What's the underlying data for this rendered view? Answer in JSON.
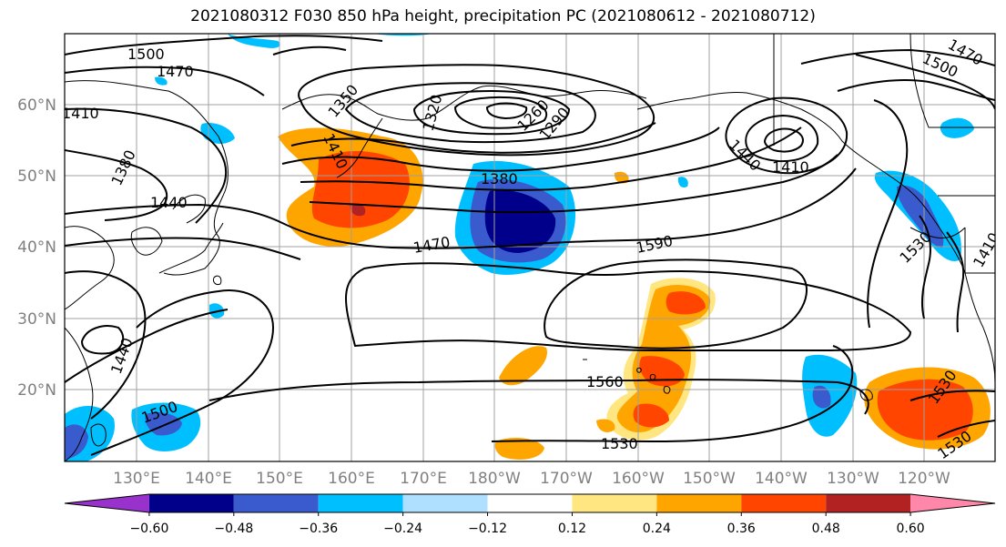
{
  "title": "2021080312 F030 850 hPa height, precipitation PC (2021080612 - 2021080712)",
  "map": {
    "lat_ticks": [
      "60°N",
      "50°N",
      "40°N",
      "30°N",
      "20°N"
    ],
    "lon_ticks": [
      "130°E",
      "140°E",
      "150°E",
      "160°E",
      "170°E",
      "180°W",
      "170°W",
      "160°W",
      "150°W",
      "140°W",
      "130°W",
      "120°W"
    ],
    "contour_labels": [
      "1500",
      "1470",
      "1410",
      "1380",
      "1440",
      "1350",
      "1320",
      "1290",
      "1260",
      "1410",
      "1380",
      "1440",
      "1410",
      "1470",
      "1590",
      "1530",
      "1560",
      "1530",
      "1500",
      "1440",
      "1530",
      "1530",
      "1500",
      "1470",
      "1410"
    ],
    "colors": {
      "contour": "#000000",
      "grid": "#a0a0a0",
      "coast": "#000000"
    }
  },
  "colorbar": {
    "labels": [
      "−0.60",
      "−0.48",
      "−0.36",
      "−0.24",
      "−0.12",
      "0.12",
      "0.24",
      "0.36",
      "0.48",
      "0.60"
    ],
    "colors": [
      "#9932cc",
      "#00008b",
      "#3a5bcd",
      "#00bfff",
      "#b0e0ff",
      "#ffffff",
      "#ffe680",
      "#ffa500",
      "#ff4500",
      "#b22222",
      "#ff88aa"
    ]
  }
}
